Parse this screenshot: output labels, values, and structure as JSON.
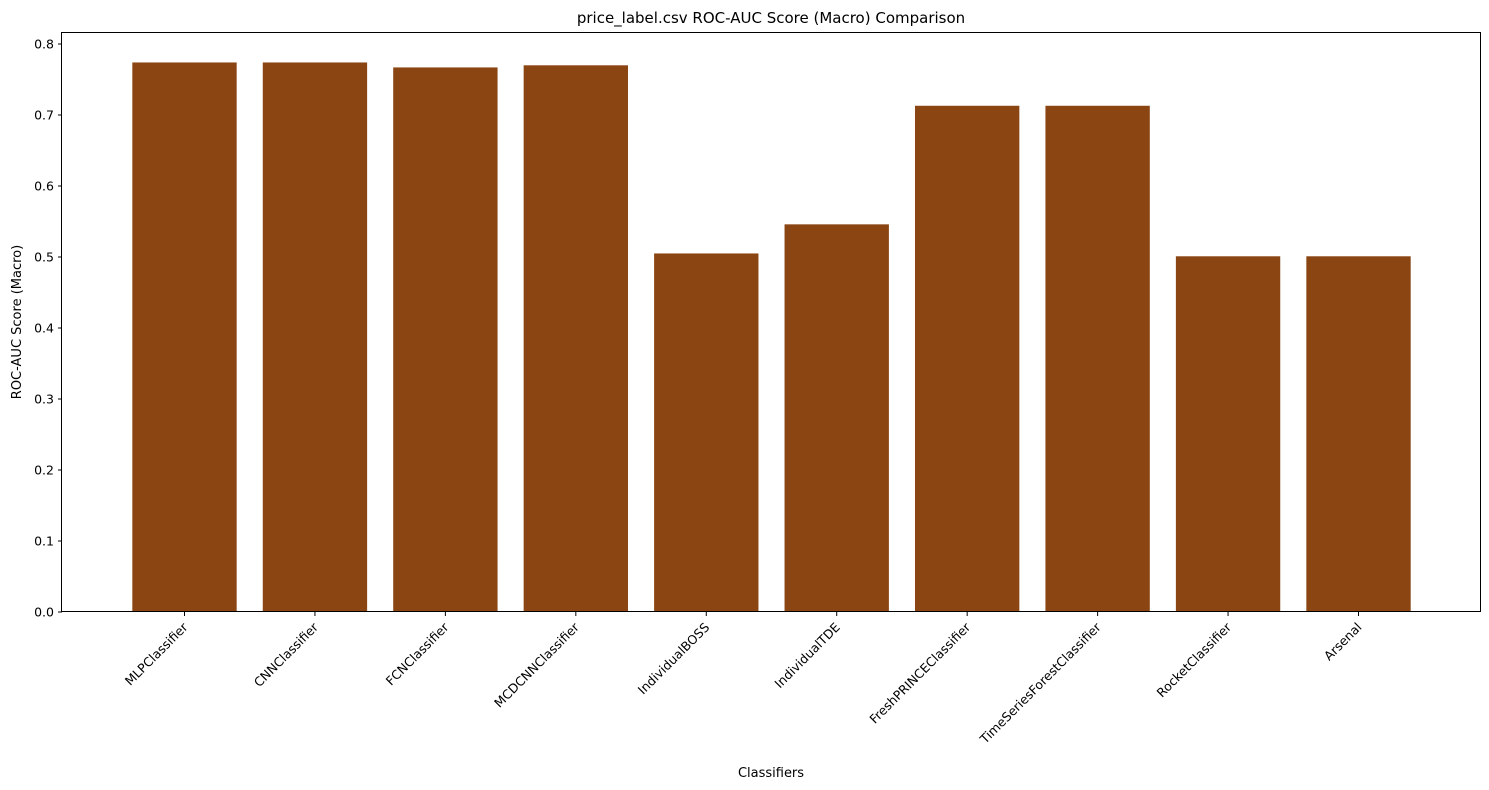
{
  "chart_data": {
    "type": "bar",
    "title": "price_label.csv ROC-AUC Score (Macro) Comparison",
    "xlabel": "Classifiers",
    "ylabel": "ROC-AUC Score (Macro)",
    "categories": [
      "MLPClassifier",
      "CNNClassifier",
      "FCNClassifier",
      "MCDCNNClassifier",
      "IndividualBOSS",
      "IndividualTDE",
      "FreshPRINCEClassifier",
      "TimeSeriesForestClassifier",
      "RocketClassifier",
      "Arsenal"
    ],
    "values": [
      0.774,
      0.774,
      0.767,
      0.77,
      0.505,
      0.546,
      0.713,
      0.713,
      0.501,
      0.501
    ],
    "ylim": [
      0,
      0.8155
    ],
    "yticks": [
      0.0,
      0.1,
      0.2,
      0.3,
      0.4,
      0.5,
      0.6,
      0.7,
      0.8
    ],
    "bar_color": "#8b4513",
    "grid": false,
    "legend": "none"
  }
}
